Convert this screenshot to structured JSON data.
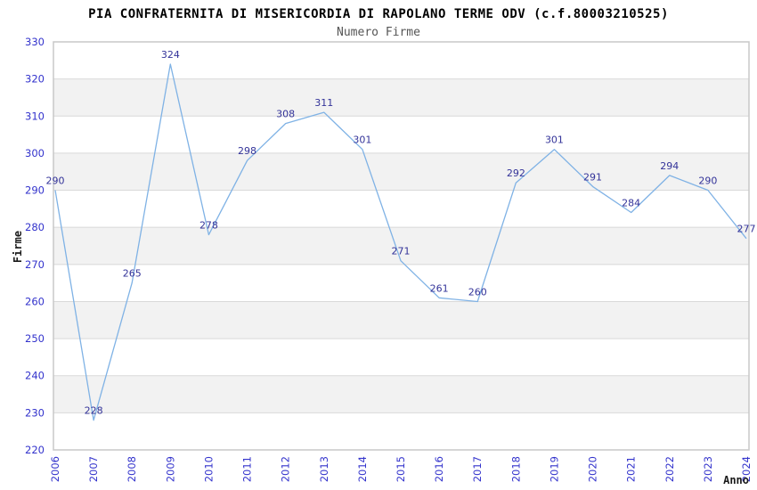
{
  "header": {
    "title": "PIA CONFRATERNITA DI MISERICORDIA DI RAPOLANO TERME ODV (c.f.80003210525)",
    "subtitle": "Numero Firme"
  },
  "chart_data": {
    "type": "line",
    "title": "PIA CONFRATERNITA DI MISERICORDIA DI RAPOLANO TERME ODV (c.f.80003210525)",
    "subtitle": "Numero Firme",
    "xlabel": "Anno",
    "ylabel": "Firme",
    "categories": [
      "2006",
      "2007",
      "2008",
      "2009",
      "2010",
      "2011",
      "2012",
      "2013",
      "2014",
      "2015",
      "2016",
      "2017",
      "2018",
      "2019",
      "2020",
      "2021",
      "2022",
      "2023",
      "2024"
    ],
    "values": [
      290,
      228,
      265,
      324,
      278,
      298,
      308,
      311,
      301,
      271,
      261,
      260,
      292,
      301,
      291,
      284,
      294,
      290,
      277
    ],
    "ylim": [
      220,
      330
    ],
    "ytick_step": 10,
    "show_value_labels": true,
    "grid": "horizontal-only",
    "legend": "none",
    "colors": {
      "line": "#7fb2e5",
      "value_label": "#333399",
      "tick_label": "#3333cc",
      "band": "#f2f2f2",
      "gridline": "#d9d9d9",
      "plot_border": "#c8c8c8",
      "title": "#000000",
      "subtitle": "#555555",
      "axis_title": "#1a1a1a"
    }
  }
}
